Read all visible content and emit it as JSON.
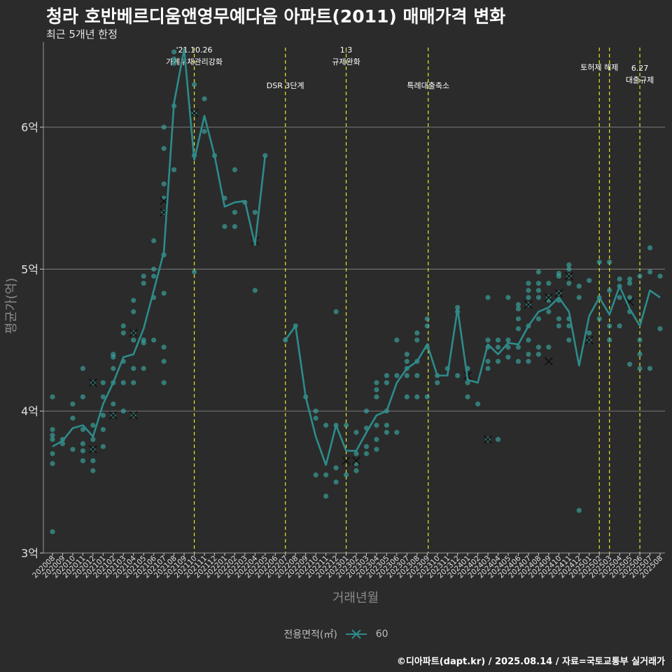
{
  "title": "청라 호반베르디움앤영무예다음 아파트(2011) 매매가격 변화",
  "subtitle": "최근 5개년 한정",
  "caption": "©디아파트(dapt.kr) / 2025.08.14 / 자료=국토교통부 실거래가",
  "legend": {
    "title": "전용면적(㎡)",
    "entry": "60"
  },
  "colors": {
    "line": "#2e8b8b",
    "point": "#3aa6a0",
    "cross": "#111111",
    "event": "#e8e82a",
    "grid": "#7a7a7a",
    "background": "#2b2b2b"
  },
  "chart_data": {
    "type": "line",
    "xlabel": "거래년월",
    "ylabel": "평균가(억)",
    "ylim": [
      3,
      6.6
    ],
    "yticks": [
      3,
      4,
      5,
      6
    ],
    "ytick_labels": [
      "3억",
      "4억",
      "5억",
      "6억"
    ],
    "grid": true,
    "legend_position": "bottom",
    "categories": [
      "202008",
      "202009",
      "202010",
      "202011",
      "202012",
      "202101",
      "202102",
      "202103",
      "202104",
      "202105",
      "202106",
      "202107",
      "202108",
      "202109",
      "202110",
      "202111",
      "202112",
      "202201",
      "202202",
      "202203",
      "202204",
      "202205",
      "202206",
      "202207",
      "202208",
      "202209",
      "202210",
      "202211",
      "202212",
      "202301",
      "202302",
      "202303",
      "202304",
      "202305",
      "202306",
      "202307",
      "202308",
      "202309",
      "202310",
      "202311",
      "202312",
      "202401",
      "202402",
      "202403",
      "202404",
      "202405",
      "202406",
      "202407",
      "202408",
      "202409",
      "202410",
      "202411",
      "202412",
      "202501",
      "202502",
      "202503",
      "202504",
      "202505",
      "202506",
      "202507",
      "202508"
    ],
    "series": [
      {
        "name": "60",
        "values": [
          3.75,
          3.79,
          3.88,
          3.9,
          3.82,
          4.05,
          4.2,
          4.38,
          4.4,
          4.58,
          4.85,
          5.12,
          6.17,
          6.55,
          5.77,
          6.08,
          5.8,
          5.44,
          5.47,
          5.48,
          5.17,
          5.8,
          null,
          4.5,
          4.6,
          4.1,
          3.82,
          3.62,
          3.9,
          3.72,
          3.72,
          3.85,
          3.97,
          4.0,
          4.2,
          4.3,
          4.35,
          4.47,
          4.25,
          4.25,
          4.72,
          4.22,
          4.2,
          4.47,
          4.4,
          4.48,
          4.47,
          4.6,
          4.7,
          4.73,
          4.8,
          4.7,
          4.32,
          4.67,
          4.8,
          4.68,
          4.88,
          4.72,
          4.6,
          4.85,
          4.8
        ]
      }
    ],
    "scatter_points": [
      [
        0,
        3.15
      ],
      [
        0,
        3.63
      ],
      [
        0,
        3.7
      ],
      [
        0,
        3.8
      ],
      [
        0,
        3.83
      ],
      [
        0,
        3.87
      ],
      [
        0,
        4.1
      ],
      [
        1,
        3.77
      ],
      [
        1,
        3.8
      ],
      [
        2,
        3.73
      ],
      [
        2,
        3.95
      ],
      [
        2,
        4.05
      ],
      [
        3,
        3.65
      ],
      [
        3,
        3.72
      ],
      [
        3,
        3.77
      ],
      [
        3,
        3.87
      ],
      [
        3,
        4.1
      ],
      [
        3,
        4.3
      ],
      [
        4,
        3.58
      ],
      [
        4,
        3.65
      ],
      [
        4,
        3.73
      ],
      [
        4,
        3.8
      ],
      [
        4,
        3.9
      ],
      [
        4,
        4.2
      ],
      [
        5,
        3.75
      ],
      [
        5,
        3.87
      ],
      [
        5,
        3.97
      ],
      [
        5,
        4.1
      ],
      [
        5,
        4.2
      ],
      [
        6,
        3.97
      ],
      [
        6,
        4.05
      ],
      [
        6,
        4.2
      ],
      [
        6,
        4.3
      ],
      [
        6,
        4.38
      ],
      [
        6,
        4.4
      ],
      [
        7,
        4.0
      ],
      [
        7,
        4.2
      ],
      [
        7,
        4.35
      ],
      [
        7,
        4.55
      ],
      [
        7,
        4.6
      ],
      [
        8,
        3.97
      ],
      [
        8,
        4.2
      ],
      [
        8,
        4.3
      ],
      [
        8,
        4.5
      ],
      [
        8,
        4.55
      ],
      [
        8,
        4.7
      ],
      [
        8,
        4.78
      ],
      [
        9,
        4.3
      ],
      [
        9,
        4.48
      ],
      [
        9,
        4.5
      ],
      [
        9,
        4.9
      ],
      [
        9,
        4.95
      ],
      [
        10,
        4.5
      ],
      [
        10,
        4.8
      ],
      [
        10,
        4.95
      ],
      [
        10,
        5.0
      ],
      [
        10,
        5.2
      ],
      [
        11,
        4.2
      ],
      [
        11,
        4.35
      ],
      [
        11,
        4.45
      ],
      [
        11,
        4.83
      ],
      [
        11,
        5.1
      ],
      [
        11,
        5.4
      ],
      [
        11,
        5.5
      ],
      [
        11,
        5.6
      ],
      [
        11,
        5.85
      ],
      [
        11,
        6.0
      ],
      [
        12,
        5.7
      ],
      [
        12,
        6.15
      ],
      [
        12,
        6.45
      ],
      [
        12,
        6.48
      ],
      [
        12,
        6.53
      ],
      [
        14,
        4.98
      ],
      [
        14,
        5.8
      ],
      [
        14,
        6.1
      ],
      [
        14,
        6.3
      ],
      [
        15,
        5.97
      ],
      [
        15,
        6.2
      ],
      [
        16,
        5.8
      ],
      [
        17,
        5.3
      ],
      [
        17,
        5.5
      ],
      [
        18,
        5.3
      ],
      [
        18,
        5.4
      ],
      [
        18,
        5.7
      ],
      [
        19,
        5.47
      ],
      [
        20,
        4.85
      ],
      [
        20,
        5.4
      ],
      [
        21,
        5.8
      ],
      [
        23,
        4.5
      ],
      [
        24,
        4.6
      ],
      [
        25,
        4.1
      ],
      [
        26,
        3.55
      ],
      [
        26,
        3.95
      ],
      [
        26,
        4.0
      ],
      [
        27,
        3.4
      ],
      [
        27,
        3.55
      ],
      [
        27,
        3.9
      ],
      [
        28,
        3.5
      ],
      [
        28,
        3.6
      ],
      [
        28,
        3.9
      ],
      [
        28,
        4.7
      ],
      [
        29,
        3.55
      ],
      [
        29,
        3.9
      ],
      [
        30,
        3.58
      ],
      [
        30,
        3.63
      ],
      [
        30,
        3.7
      ],
      [
        30,
        3.85
      ],
      [
        31,
        3.7
      ],
      [
        31,
        3.75
      ],
      [
        31,
        3.88
      ],
      [
        31,
        4.0
      ],
      [
        32,
        3.73
      ],
      [
        32,
        3.8
      ],
      [
        32,
        3.9
      ],
      [
        32,
        4.1
      ],
      [
        32,
        4.15
      ],
      [
        32,
        4.2
      ],
      [
        33,
        3.85
      ],
      [
        33,
        3.9
      ],
      [
        33,
        4.0
      ],
      [
        33,
        4.2
      ],
      [
        33,
        4.25
      ],
      [
        34,
        3.85
      ],
      [
        34,
        4.25
      ],
      [
        34,
        4.5
      ],
      [
        35,
        4.1
      ],
      [
        35,
        4.25
      ],
      [
        35,
        4.3
      ],
      [
        35,
        4.35
      ],
      [
        35,
        4.4
      ],
      [
        36,
        4.1
      ],
      [
        36,
        4.25
      ],
      [
        36,
        4.35
      ],
      [
        36,
        4.5
      ],
      [
        36,
        4.55
      ],
      [
        37,
        4.1
      ],
      [
        37,
        4.45
      ],
      [
        37,
        4.6
      ],
      [
        37,
        4.65
      ],
      [
        38,
        4.2
      ],
      [
        38,
        4.25
      ],
      [
        39,
        4.3
      ],
      [
        40,
        4.25
      ],
      [
        40,
        4.7
      ],
      [
        40,
        4.73
      ],
      [
        41,
        4.1
      ],
      [
        41,
        4.2
      ],
      [
        41,
        4.3
      ],
      [
        42,
        4.05
      ],
      [
        43,
        3.8
      ],
      [
        43,
        4.3
      ],
      [
        43,
        4.35
      ],
      [
        43,
        4.45
      ],
      [
        43,
        4.5
      ],
      [
        43,
        4.8
      ],
      [
        44,
        3.8
      ],
      [
        44,
        4.35
      ],
      [
        44,
        4.45
      ],
      [
        44,
        4.5
      ],
      [
        45,
        4.38
      ],
      [
        45,
        4.45
      ],
      [
        45,
        4.5
      ],
      [
        45,
        4.8
      ],
      [
        46,
        4.35
      ],
      [
        46,
        4.45
      ],
      [
        46,
        4.58
      ],
      [
        46,
        4.65
      ],
      [
        46,
        4.72
      ],
      [
        46,
        4.75
      ],
      [
        47,
        4.35
      ],
      [
        47,
        4.4
      ],
      [
        47,
        4.5
      ],
      [
        47,
        4.6
      ],
      [
        47,
        4.75
      ],
      [
        47,
        4.8
      ],
      [
        47,
        4.85
      ],
      [
        47,
        4.9
      ],
      [
        48,
        4.4
      ],
      [
        48,
        4.45
      ],
      [
        48,
        4.65
      ],
      [
        48,
        4.8
      ],
      [
        48,
        4.85
      ],
      [
        48,
        4.9
      ],
      [
        48,
        4.98
      ],
      [
        49,
        4.45
      ],
      [
        49,
        4.7
      ],
      [
        49,
        4.78
      ],
      [
        49,
        4.8
      ],
      [
        49,
        4.9
      ],
      [
        50,
        4.6
      ],
      [
        50,
        4.65
      ],
      [
        50,
        4.78
      ],
      [
        50,
        4.83
      ],
      [
        50,
        4.95
      ],
      [
        50,
        4.97
      ],
      [
        51,
        4.5
      ],
      [
        51,
        4.6
      ],
      [
        51,
        4.65
      ],
      [
        51,
        4.9
      ],
      [
        51,
        4.95
      ],
      [
        51,
        5.0
      ],
      [
        51,
        5.03
      ],
      [
        52,
        3.3
      ],
      [
        52,
        4.8
      ],
      [
        52,
        4.88
      ],
      [
        53,
        4.5
      ],
      [
        53,
        4.55
      ],
      [
        53,
        4.92
      ],
      [
        54,
        4.65
      ],
      [
        54,
        4.8
      ],
      [
        54,
        5.05
      ],
      [
        55,
        4.5
      ],
      [
        55,
        4.6
      ],
      [
        55,
        4.85
      ],
      [
        55,
        5.05
      ],
      [
        56,
        4.6
      ],
      [
        56,
        4.8
      ],
      [
        56,
        4.88
      ],
      [
        56,
        4.93
      ],
      [
        57,
        4.33
      ],
      [
        57,
        4.7
      ],
      [
        57,
        4.8
      ],
      [
        57,
        4.9
      ],
      [
        57,
        4.93
      ],
      [
        58,
        4.3
      ],
      [
        58,
        4.4
      ],
      [
        58,
        4.5
      ],
      [
        58,
        4.95
      ],
      [
        59,
        4.3
      ],
      [
        59,
        5.15
      ],
      [
        59,
        4.98
      ],
      [
        60,
        4.58
      ],
      [
        60,
        4.95
      ]
    ],
    "cross_marks": [
      [
        4,
        3.73
      ],
      [
        4,
        4.2
      ],
      [
        6,
        3.97
      ],
      [
        8,
        3.97
      ],
      [
        8,
        4.55
      ],
      [
        11,
        5.4
      ],
      [
        11,
        5.48
      ],
      [
        14,
        6.1
      ],
      [
        20,
        5.2
      ],
      [
        29,
        3.65
      ],
      [
        30,
        3.65
      ],
      [
        41,
        4.25
      ],
      [
        43,
        3.8
      ],
      [
        47,
        4.75
      ],
      [
        49,
        4.35
      ],
      [
        49,
        4.8
      ],
      [
        50,
        4.83
      ],
      [
        51,
        4.95
      ],
      [
        53,
        4.5
      ],
      [
        57,
        4.77
      ]
    ],
    "events": [
      {
        "x_index": 14.0,
        "label": "'21.10.26\n가계부채관리강화",
        "row": 0
      },
      {
        "x_index": 23.0,
        "label": "DSR 3단계",
        "row": 2
      },
      {
        "x_index": 29.0,
        "label": "1.3\n규제완화",
        "row": 0
      },
      {
        "x_index": 37.1,
        "label": "특례대출축소",
        "row": 2
      },
      {
        "x_index": 54.0,
        "label": "토허제 해제",
        "row": 1
      },
      {
        "x_index": 55.0,
        "label": "",
        "row": 1
      },
      {
        "x_index": 58.0,
        "label": "6.27\n대출규제",
        "row": 3
      }
    ]
  }
}
